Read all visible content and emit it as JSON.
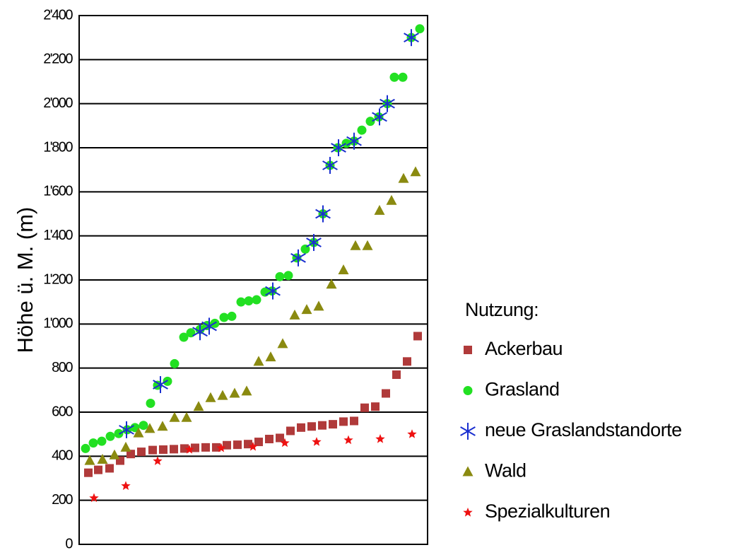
{
  "chart_data": {
    "type": "scatter",
    "y_label": "Höhe ü. M. (m)",
    "legend_title": "Nutzung:",
    "legend": "right",
    "grid": true,
    "xlim": [
      0,
      493
    ],
    "ylim": [
      0,
      2400
    ],
    "yticks": [
      0,
      200,
      400,
      600,
      800,
      {
        "value": 1000,
        "label": "1'000"
      },
      {
        "value": 1200,
        "label": "1'200"
      },
      {
        "value": 1400,
        "label": "1'400"
      },
      {
        "value": 1600,
        "label": "1'600"
      },
      {
        "value": 1800,
        "label": "1'800"
      },
      {
        "value": 2000,
        "label": "2'000"
      },
      {
        "value": 2200,
        "label": "2'200"
      },
      {
        "value": 2400,
        "label": "2'400"
      }
    ],
    "series": [
      {
        "name": "Ackerbau",
        "color": "#b03a3a",
        "marker": "square",
        "x": [
          13,
          27,
          43,
          58,
          73,
          88,
          104,
          119,
          134,
          149,
          164,
          179,
          194,
          209,
          224,
          239,
          254,
          269,
          284,
          299,
          314,
          329,
          344,
          359,
          374,
          389,
          404,
          419,
          434,
          449,
          464,
          479
        ],
        "values": [
          325,
          338,
          345,
          380,
          410,
          420,
          428,
          430,
          432,
          435,
          438,
          440,
          440,
          450,
          452,
          455,
          465,
          478,
          483,
          515,
          530,
          535,
          540,
          545,
          557,
          560,
          620,
          625,
          685,
          770,
          830,
          945
        ]
      },
      {
        "name": "Grasland",
        "color": "#22e022",
        "marker": "circle",
        "x": [
          9,
          20,
          32,
          44,
          56,
          68,
          79,
          91,
          101,
          111,
          125,
          135,
          148,
          158,
          171,
          181,
          192,
          205,
          216,
          229,
          240,
          251,
          263,
          273,
          284,
          296,
          308,
          320,
          332,
          345,
          355,
          366,
          378,
          389,
          400,
          412,
          424,
          436,
          446,
          458,
          470,
          482
        ],
        "values": [
          435,
          460,
          468,
          490,
          503,
          520,
          530,
          540,
          640,
          722,
          740,
          820,
          940,
          960,
          975,
          993,
          1003,
          1030,
          1035,
          1100,
          1105,
          1110,
          1145,
          1150,
          1215,
          1220,
          1300,
          1340,
          1370,
          1500,
          1720,
          1800,
          1820,
          1830,
          1880,
          1920,
          1940,
          2000,
          2120,
          2120,
          2300,
          2340
        ]
      },
      {
        "name": "neue Graslandstandorte",
        "color": "#1a2fd0",
        "marker": "asterisk",
        "x": [
          67,
          115,
          171,
          184,
          274,
          310,
          332,
          345,
          355,
          367,
          389,
          425,
          436,
          470
        ],
        "values": [
          520,
          725,
          965,
          990,
          1150,
          1300,
          1370,
          1500,
          1720,
          1800,
          1830,
          1940,
          2000,
          2300
        ]
      },
      {
        "name": "Wald",
        "color": "#8a8a10",
        "marker": "triangle",
        "x": [
          15,
          33,
          50,
          66,
          84,
          100,
          118,
          135,
          152,
          169,
          186,
          203,
          220,
          237,
          254,
          271,
          288,
          305,
          322,
          339,
          357,
          374,
          391,
          408,
          425,
          442,
          459,
          476
        ],
        "values": [
          380,
          385,
          405,
          440,
          505,
          525,
          535,
          575,
          575,
          625,
          665,
          675,
          685,
          695,
          830,
          850,
          910,
          1040,
          1065,
          1080,
          1180,
          1245,
          1355,
          1355,
          1515,
          1560,
          1660,
          1690
        ]
      },
      {
        "name": "Spezialkulturen",
        "color": "#ee1111",
        "marker": "star",
        "x": [
          21,
          66,
          111,
          156,
          201,
          246,
          291,
          336,
          381,
          426,
          471
        ],
        "values": [
          210,
          265,
          378,
          430,
          437,
          443,
          460,
          465,
          473,
          478,
          500
        ]
      }
    ]
  }
}
